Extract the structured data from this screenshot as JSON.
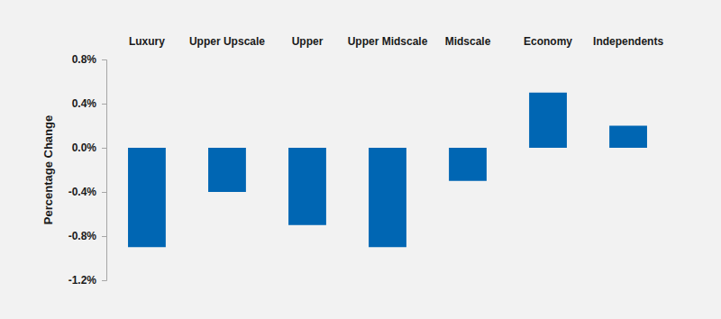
{
  "chart_data": {
    "type": "bar",
    "y_label": "Percentage Change",
    "categories": [
      "Luxury",
      "Upper Upscale",
      "Upper",
      "Upper Midscale",
      "Midscale",
      "Economy",
      "Independents"
    ],
    "values": [
      -0.9,
      -0.4,
      -0.7,
      -0.9,
      -0.3,
      0.5,
      0.2
    ],
    "color": "#0066b3",
    "ylim": [
      -1.2,
      0.8
    ],
    "yticks": [
      {
        "value": -1.2,
        "label": "-1.2%"
      },
      {
        "value": -0.8,
        "label": "-0.8%"
      },
      {
        "value": -0.4,
        "label": "-0.4%"
      },
      {
        "value": 0.0,
        "label": "0.0%"
      },
      {
        "value": 0.4,
        "label": "0.4%"
      },
      {
        "value": 0.8,
        "label": "0.8%"
      }
    ],
    "grid": false
  }
}
